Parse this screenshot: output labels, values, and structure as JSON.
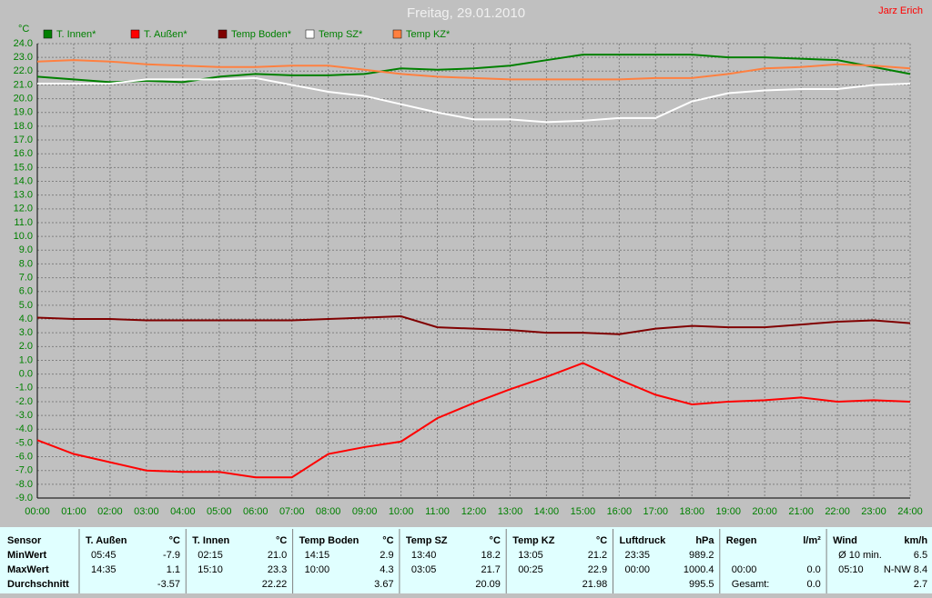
{
  "chart_data": {
    "type": "line",
    "title": "Freitag, 29.01.2010",
    "annotation": "Jarz Erich",
    "y_label": "°C",
    "grid": true,
    "legend": "top-left",
    "categories": [
      "00:00",
      "01:00",
      "02:00",
      "03:00",
      "04:00",
      "05:00",
      "06:00",
      "07:00",
      "08:00",
      "09:00",
      "10:00",
      "11:00",
      "12:00",
      "13:00",
      "14:00",
      "15:00",
      "16:00",
      "17:00",
      "18:00",
      "19:00",
      "20:00",
      "21:00",
      "22:00",
      "23:00",
      "24:00"
    ],
    "series": [
      {
        "name": "T. Innen*",
        "color": "#008000",
        "values": [
          21.6,
          21.4,
          21.2,
          21.3,
          21.2,
          21.6,
          21.8,
          21.7,
          21.7,
          21.8,
          22.2,
          22.1,
          22.2,
          22.4,
          22.8,
          23.2,
          23.2,
          23.2,
          23.2,
          23.0,
          23.0,
          22.9,
          22.8,
          22.3,
          21.8
        ]
      },
      {
        "name": "T. Außen*",
        "color": "#ff0000",
        "values": [
          -4.8,
          -5.8,
          -6.4,
          -7.0,
          -7.1,
          -7.1,
          -7.5,
          -7.5,
          -5.8,
          -5.3,
          -4.9,
          -3.2,
          -2.1,
          -1.1,
          -0.2,
          0.8,
          -0.4,
          -1.5,
          -2.2,
          -2.0,
          -1.9,
          -1.7,
          -2.0,
          -1.9,
          -2.0
        ]
      },
      {
        "name": "Temp Boden*",
        "color": "#800000",
        "values": [
          4.1,
          4.0,
          4.0,
          3.9,
          3.9,
          3.9,
          3.9,
          3.9,
          4.0,
          4.1,
          4.2,
          3.4,
          3.3,
          3.2,
          3.0,
          3.0,
          2.9,
          3.3,
          3.5,
          3.4,
          3.4,
          3.6,
          3.8,
          3.9,
          3.7
        ]
      },
      {
        "name": "Temp SZ*",
        "color": "#ffffff",
        "values": [
          21.1,
          21.1,
          21.1,
          21.4,
          21.4,
          21.4,
          21.5,
          21.0,
          20.5,
          20.2,
          19.6,
          19.0,
          18.5,
          18.5,
          18.3,
          18.4,
          18.6,
          18.6,
          19.8,
          20.4,
          20.6,
          20.7,
          20.7,
          21.0,
          21.1
        ]
      },
      {
        "name": "Temp KZ*",
        "color": "#ff8040",
        "values": [
          22.7,
          22.8,
          22.7,
          22.5,
          22.4,
          22.3,
          22.3,
          22.4,
          22.4,
          22.1,
          21.8,
          21.6,
          21.5,
          21.4,
          21.4,
          21.4,
          21.4,
          21.5,
          21.5,
          21.8,
          22.2,
          22.3,
          22.5,
          22.4,
          22.2
        ]
      }
    ],
    "ylim": [
      -9,
      24
    ],
    "yticks": [
      {
        "value": 24,
        "label": "24.0"
      },
      {
        "value": 23,
        "label": "23.0"
      },
      {
        "value": 22,
        "label": "22.0"
      },
      {
        "value": 21,
        "label": "21.0"
      },
      {
        "value": 20,
        "label": "20.0"
      },
      {
        "value": 19,
        "label": "19.0"
      },
      {
        "value": 18,
        "label": "18.0"
      },
      {
        "value": 17,
        "label": "17.0"
      },
      {
        "value": 16,
        "label": "16.0"
      },
      {
        "value": 15,
        "label": "15.0"
      },
      {
        "value": 14,
        "label": "14.0"
      },
      {
        "value": 13,
        "label": "13.0"
      },
      {
        "value": 12,
        "label": "12.0"
      },
      {
        "value": 11,
        "label": "11.0"
      },
      {
        "value": 10,
        "label": "10.0"
      },
      {
        "value": 9,
        "label": "9.0"
      },
      {
        "value": 8,
        "label": "8.0"
      },
      {
        "value": 7,
        "label": "7.0"
      },
      {
        "value": 6,
        "label": "6.0"
      },
      {
        "value": 5,
        "label": "5.0"
      },
      {
        "value": 4,
        "label": "4.0"
      },
      {
        "value": 3,
        "label": "3.0"
      },
      {
        "value": 2,
        "label": "2.0"
      },
      {
        "value": 1,
        "label": "1.0"
      },
      {
        "value": 0,
        "label": "0.0"
      },
      {
        "value": -1,
        "label": "-1.0"
      },
      {
        "value": -2,
        "label": "-2.0"
      },
      {
        "value": -3,
        "label": "-3.0"
      },
      {
        "value": -4,
        "label": "-4.0"
      },
      {
        "value": -5,
        "label": "-5.0"
      },
      {
        "value": -6,
        "label": "-6.0"
      },
      {
        "value": -7,
        "label": "-7.0"
      },
      {
        "value": -8,
        "label": "-8.0"
      },
      {
        "value": -9,
        "label": "-9.0"
      }
    ]
  },
  "table": {
    "sensor": "Sensor",
    "row_labels": [
      "MinWert",
      "MaxWert",
      "Durchschnitt"
    ],
    "columns": [
      {
        "name": "T. Außen",
        "unit": "°C",
        "rows": [
          {
            "left": "05:45",
            "right": "-7.9"
          },
          {
            "left": "14:35",
            "right": "1.1"
          },
          {
            "right": "-3.57"
          }
        ]
      },
      {
        "name": "T. Innen",
        "unit": "°C",
        "rows": [
          {
            "left": "02:15",
            "right": "21.0"
          },
          {
            "left": "15:10",
            "right": "23.3"
          },
          {
            "right": "22.22"
          }
        ]
      },
      {
        "name": "Temp Boden",
        "unit": "°C",
        "rows": [
          {
            "left": "14:15",
            "right": "2.9"
          },
          {
            "left": "10:00",
            "right": "4.3"
          },
          {
            "right": "3.67"
          }
        ]
      },
      {
        "name": "Temp SZ",
        "unit": "°C",
        "rows": [
          {
            "left": "13:40",
            "right": "18.2"
          },
          {
            "left": "03:05",
            "right": "21.7"
          },
          {
            "right": "20.09"
          }
        ]
      },
      {
        "name": "Temp KZ",
        "unit": "°C",
        "rows": [
          {
            "left": "13:05",
            "right": "21.2"
          },
          {
            "left": "00:25",
            "right": "22.9"
          },
          {
            "right": "21.98"
          }
        ]
      },
      {
        "name": "Luftdruck",
        "unit": "hPa",
        "rows": [
          {
            "left": "23:35",
            "right": "989.2"
          },
          {
            "left": "00:00",
            "right": "1000.4"
          },
          {
            "right": "995.5"
          }
        ]
      },
      {
        "name": "Regen",
        "unit": "l/m²",
        "rows": [
          {},
          {
            "left": "00:00",
            "right": "0.0"
          },
          {
            "left": "Gesamt:",
            "right": "0.0"
          }
        ]
      },
      {
        "name": "Wind",
        "unit": "km/h",
        "rows": [
          {
            "left": "Ø 10 min.",
            "right": "6.5"
          },
          {
            "left": "05:10",
            "right": "N-NW 8.4"
          },
          {
            "right": "2.7"
          }
        ]
      }
    ]
  }
}
